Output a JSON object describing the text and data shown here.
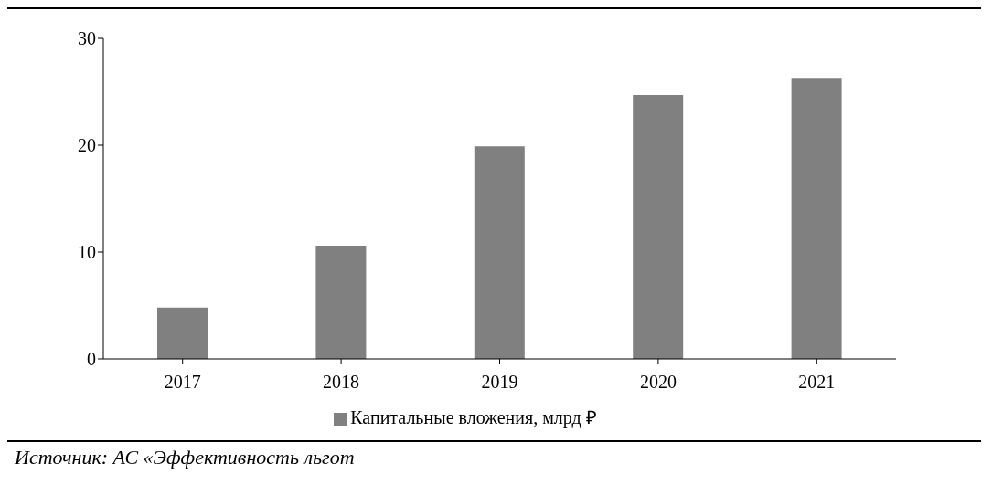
{
  "chart_data": {
    "type": "bar",
    "categories": [
      "2017",
      "2018",
      "2019",
      "2020",
      "2021"
    ],
    "series": [
      {
        "name": "Капитальные вложения, млрд ₽",
        "color": "#808080",
        "values": [
          4.8,
          10.6,
          19.9,
          24.7,
          26.3
        ]
      }
    ],
    "ylim": [
      0,
      30
    ],
    "yticks": [
      0,
      10,
      20,
      30
    ],
    "grid": false,
    "legend": "bottom",
    "annotations": [
      "Источник: АС «Эффективность льгот"
    ]
  }
}
